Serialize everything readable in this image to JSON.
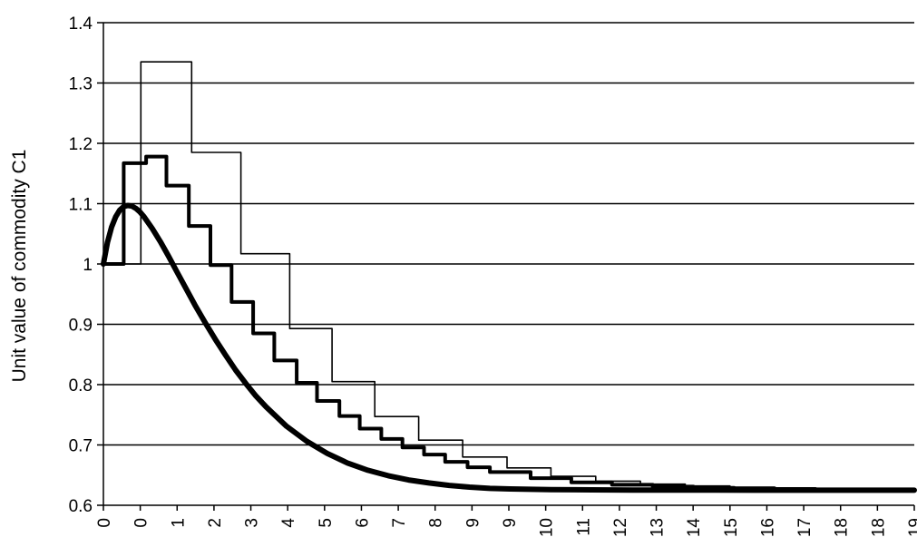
{
  "chart_data": {
    "type": "line",
    "title": "",
    "xlabel": "",
    "ylabel": "Unit value of commodity C1",
    "ylim": [
      0.6,
      1.4
    ],
    "yticks": [
      0.6,
      0.7,
      0.8,
      0.9,
      1,
      1.1,
      1.2,
      1.3,
      1.4
    ],
    "ytick_labels": [
      "0.6",
      "0.7",
      "0.8",
      "0.9",
      "1",
      "1.1",
      "1.2",
      "1.3",
      "1.4"
    ],
    "xlim": [
      0,
      19.93
    ],
    "xtick_labels": [
      "0",
      "0",
      "1",
      "2",
      "3",
      "4",
      "5",
      "6",
      "7",
      "8",
      "9",
      "9",
      "10",
      "11",
      "12",
      "13",
      "14",
      "15",
      "16",
      "17",
      "18",
      "18",
      "19"
    ],
    "grid": "horizontal",
    "legend": "none",
    "series": [
      {
        "style": "thin",
        "color": "#000000",
        "x": [
          0,
          0.92,
          0.92,
          2.17,
          2.17,
          3.38,
          3.38,
          4.58,
          4.58,
          5.62,
          5.62,
          6.67,
          6.67,
          7.75,
          7.75,
          8.83,
          8.83,
          9.92,
          9.92,
          11.0,
          11.0,
          12.1,
          12.1,
          13.2,
          13.2,
          14.3,
          14.3,
          15.4,
          15.4,
          16.5,
          16.5,
          17.6,
          17.6,
          18.8,
          18.8,
          19.93
        ],
        "y": [
          1.0,
          1.0,
          1.335,
          1.335,
          1.185,
          1.185,
          1.017,
          1.017,
          0.893,
          0.893,
          0.805,
          0.805,
          0.747,
          0.747,
          0.708,
          0.708,
          0.68,
          0.68,
          0.662,
          0.662,
          0.648,
          0.648,
          0.64,
          0.64,
          0.635,
          0.635,
          0.632,
          0.632,
          0.63,
          0.63,
          0.628,
          0.628,
          0.627,
          0.627,
          0.626,
          0.626
        ]
      },
      {
        "style": "medium",
        "color": "#000000",
        "x": [
          0,
          0.5,
          0.5,
          1.05,
          1.05,
          1.55,
          1.55,
          2.1,
          2.1,
          2.63,
          2.63,
          3.15,
          3.15,
          3.68,
          3.68,
          4.2,
          4.2,
          4.75,
          4.75,
          5.25,
          5.25,
          5.8,
          5.8,
          6.3,
          6.3,
          6.83,
          6.83,
          7.35,
          7.35,
          7.88,
          7.88,
          8.4,
          8.4,
          8.95,
          8.95,
          9.5,
          9.5,
          10.5,
          10.5,
          11.5,
          11.5,
          12.5,
          12.5,
          13.5,
          13.5,
          14.5,
          14.5,
          15.5,
          15.5,
          16.5,
          16.5,
          17.5,
          17.5,
          18.5,
          18.5,
          19.93
        ],
        "y": [
          1.0,
          1.0,
          1.167,
          1.167,
          1.178,
          1.178,
          1.13,
          1.13,
          1.063,
          1.063,
          0.998,
          0.998,
          0.937,
          0.937,
          0.885,
          0.885,
          0.84,
          0.84,
          0.803,
          0.803,
          0.773,
          0.773,
          0.748,
          0.748,
          0.727,
          0.727,
          0.71,
          0.71,
          0.696,
          0.696,
          0.684,
          0.684,
          0.672,
          0.672,
          0.663,
          0.663,
          0.655,
          0.655,
          0.645,
          0.645,
          0.638,
          0.638,
          0.634,
          0.634,
          0.631,
          0.631,
          0.629,
          0.629,
          0.628,
          0.628,
          0.627,
          0.627,
          0.626,
          0.626,
          0.626,
          0.626
        ]
      },
      {
        "style": "thick",
        "color": "#000000",
        "x": [
          0,
          0.1,
          0.2,
          0.3,
          0.4,
          0.5,
          0.6,
          0.7,
          0.8,
          0.9,
          1.0,
          1.2,
          1.4,
          1.6,
          1.8,
          2.0,
          2.25,
          2.5,
          2.75,
          3.0,
          3.25,
          3.5,
          3.75,
          4.0,
          4.5,
          5.0,
          5.5,
          6.0,
          6.5,
          7.0,
          7.5,
          8.0,
          8.5,
          9.0,
          9.5,
          10.0,
          11.0,
          12.0,
          13.0,
          14.0,
          15.0,
          16.0,
          17.0,
          18.0,
          19.0,
          19.93
        ],
        "y": [
          1.0,
          1.036,
          1.061,
          1.078,
          1.089,
          1.095,
          1.097,
          1.096,
          1.092,
          1.086,
          1.078,
          1.059,
          1.037,
          1.013,
          0.988,
          0.963,
          0.932,
          0.903,
          0.875,
          0.849,
          0.824,
          0.802,
          0.781,
          0.763,
          0.731,
          0.706,
          0.686,
          0.67,
          0.658,
          0.649,
          0.642,
          0.637,
          0.633,
          0.63,
          0.628,
          0.627,
          0.626,
          0.6255,
          0.6253,
          0.6252,
          0.6251,
          0.625,
          0.625,
          0.625,
          0.625,
          0.625
        ]
      }
    ]
  }
}
